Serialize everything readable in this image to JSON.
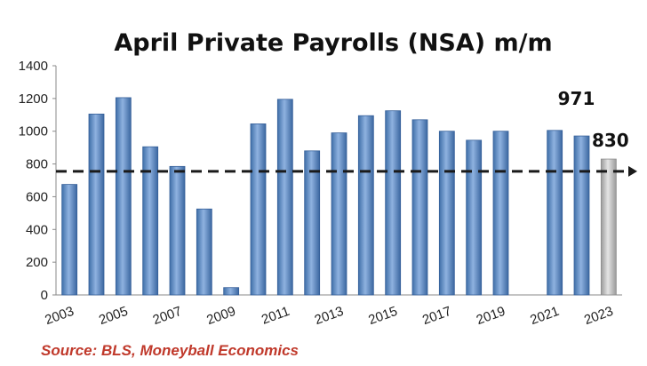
{
  "chart_data": {
    "type": "bar",
    "title": "April Private Payrolls (NSA) m/m",
    "categories": [
      "2003",
      "2004",
      "2005",
      "2006",
      "2007",
      "2008",
      "2009",
      "2010",
      "2011",
      "2012",
      "2013",
      "2014",
      "2015",
      "2016",
      "2017",
      "2018",
      "2019",
      "2020",
      "2021",
      "2022",
      "2023"
    ],
    "x_tick_labels": [
      "2003",
      "2005",
      "2007",
      "2009",
      "2011",
      "2013",
      "2015",
      "2017",
      "2019",
      "2021",
      "2023"
    ],
    "values": [
      675,
      1105,
      1205,
      905,
      785,
      525,
      45,
      1045,
      1195,
      880,
      990,
      1095,
      1125,
      1070,
      1000,
      945,
      1000,
      null,
      1005,
      971,
      830
    ],
    "highlight_category": "2023",
    "data_labels": [
      {
        "category": "2022",
        "text": "971"
      },
      {
        "category": "2023",
        "text": "830"
      }
    ],
    "reference_line": {
      "value": 755,
      "style": "dashed"
    },
    "ylim": [
      0,
      1400
    ],
    "yticks": [
      0,
      200,
      400,
      600,
      800,
      1000,
      1200,
      1400
    ],
    "grid": false,
    "colors": {
      "bar": "#4f81bd",
      "bar_light": "#93b3de",
      "highlight": "#b8b8b8",
      "reference_line": "#1a1a1a",
      "source": "#c0392b"
    }
  },
  "source": "Source: BLS, Moneyball Economics"
}
